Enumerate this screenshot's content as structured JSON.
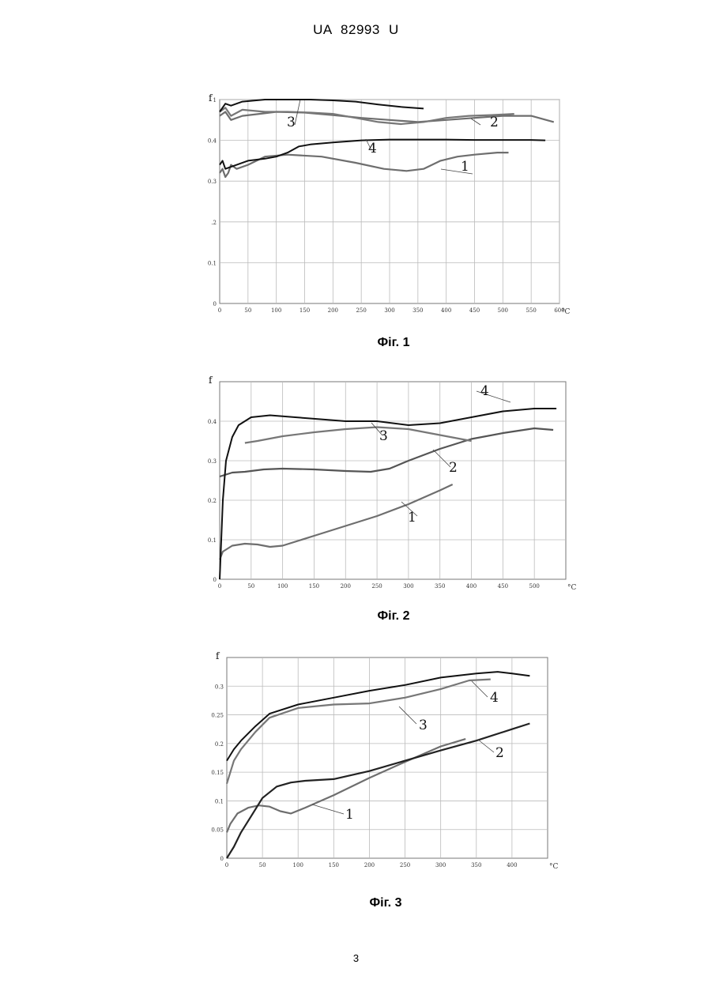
{
  "header": {
    "doc_id": "UA   82993   U"
  },
  "page_number": "3",
  "chart_data": [
    {
      "type": "line",
      "caption": "Фіг. 1",
      "ylabel": "f",
      "xunit": "°C",
      "xlim": [
        0,
        600
      ],
      "ylim": [
        0,
        0.5
      ],
      "xticks": [
        0,
        50,
        100,
        150,
        200,
        250,
        300,
        350,
        400,
        450,
        500,
        550,
        600
      ],
      "xtick_labels": [
        "0",
        "50",
        "100",
        "150",
        "200",
        "250",
        "300",
        "350",
        "400",
        "450",
        "500",
        "550",
        "600"
      ],
      "yticks": [
        0,
        0.1,
        0.2,
        0.3,
        0.4,
        0.5
      ],
      "ytick_labels": [
        "0",
        "0.1",
        ".2",
        "0.3",
        "0.4",
        "1"
      ],
      "grid": true,
      "series": [
        {
          "name": "1",
          "color": "#6e6e6e",
          "x": [
            0,
            5,
            10,
            15,
            20,
            30,
            50,
            80,
            120,
            180,
            240,
            290,
            330,
            360,
            390,
            420,
            450,
            490,
            510
          ],
          "y": [
            0.32,
            0.33,
            0.31,
            0.32,
            0.34,
            0.33,
            0.34,
            0.36,
            0.365,
            0.36,
            0.345,
            0.33,
            0.325,
            0.33,
            0.35,
            0.36,
            0.365,
            0.37,
            0.37
          ]
        },
        {
          "name": "2",
          "color": "#6e6e6e",
          "x": [
            0,
            10,
            20,
            40,
            70,
            100,
            150,
            200,
            250,
            300,
            350,
            400,
            450,
            500,
            550,
            590
          ],
          "y": [
            0.46,
            0.47,
            0.45,
            0.46,
            0.465,
            0.47,
            0.468,
            0.462,
            0.455,
            0.45,
            0.445,
            0.45,
            0.455,
            0.46,
            0.46,
            0.445
          ]
        },
        {
          "name": "3",
          "color": "#777777",
          "x": [
            0,
            10,
            20,
            40,
            80,
            120,
            160,
            200,
            240,
            280,
            320,
            360,
            400,
            440,
            480,
            520
          ],
          "y": [
            0.47,
            0.48,
            0.46,
            0.475,
            0.47,
            0.47,
            0.468,
            0.465,
            0.455,
            0.445,
            0.44,
            0.445,
            0.455,
            0.46,
            0.462,
            0.465
          ]
        },
        {
          "name": "4",
          "color": "#111111",
          "x": [
            0,
            5,
            10,
            20,
            30,
            50,
            80,
            100,
            120,
            140,
            160,
            200,
            250,
            300,
            350,
            400,
            450,
            500,
            550,
            575
          ],
          "y": [
            0.34,
            0.35,
            0.33,
            0.335,
            0.34,
            0.35,
            0.355,
            0.36,
            0.37,
            0.385,
            0.39,
            0.395,
            0.4,
            0.402,
            0.402,
            0.402,
            0.401,
            0.401,
            0.401,
            0.4
          ]
        },
        {
          "name": "",
          "color": "#111111",
          "x": [
            0,
            5,
            10,
            20,
            40,
            80,
            120,
            160,
            200,
            240,
            280,
            320,
            360
          ],
          "y": [
            0.47,
            0.48,
            0.49,
            0.485,
            0.495,
            0.5,
            0.5,
            0.5,
            0.498,
            0.495,
            0.488,
            0.482,
            0.478
          ]
        }
      ]
    },
    {
      "type": "line",
      "caption": "Фіг. 2",
      "ylabel": "f",
      "xunit": "°C",
      "xlim": [
        0,
        550
      ],
      "ylim": [
        0,
        0.5
      ],
      "xticks": [
        0,
        50,
        100,
        150,
        200,
        250,
        300,
        350,
        400,
        450,
        500
      ],
      "xtick_labels": [
        "0",
        "50",
        "100",
        "150",
        "200",
        "250",
        "300",
        "350",
        "400",
        "450",
        "500"
      ],
      "yticks": [
        0,
        0.1,
        0.2,
        0.3,
        0.4
      ],
      "ytick_labels": [
        "0",
        "0.1",
        "0.2",
        "0.3",
        "0.4"
      ],
      "grid": true,
      "series": [
        {
          "name": "1",
          "color": "#6e6e6e",
          "x": [
            0,
            5,
            20,
            40,
            60,
            80,
            100,
            150,
            200,
            250,
            300,
            350,
            370
          ],
          "y": [
            0.05,
            0.07,
            0.085,
            0.09,
            0.088,
            0.082,
            0.085,
            0.11,
            0.135,
            0.16,
            0.19,
            0.225,
            0.24
          ]
        },
        {
          "name": "2",
          "color": "#555555",
          "x": [
            0,
            10,
            20,
            40,
            70,
            100,
            150,
            200,
            240,
            270,
            300,
            350,
            400,
            450,
            500,
            530
          ],
          "y": [
            0.26,
            0.265,
            0.27,
            0.272,
            0.278,
            0.28,
            0.278,
            0.274,
            0.272,
            0.28,
            0.3,
            0.33,
            0.355,
            0.37,
            0.382,
            0.378
          ]
        },
        {
          "name": "3",
          "color": "#777777",
          "x": [
            40,
            60,
            100,
            150,
            200,
            250,
            300,
            350,
            400
          ],
          "y": [
            0.345,
            0.35,
            0.362,
            0.372,
            0.38,
            0.385,
            0.38,
            0.365,
            0.35
          ]
        },
        {
          "name": "4",
          "color": "#111111",
          "x": [
            0,
            5,
            10,
            20,
            30,
            50,
            80,
            120,
            160,
            200,
            250,
            300,
            350,
            400,
            450,
            500,
            535
          ],
          "y": [
            0.0,
            0.2,
            0.3,
            0.36,
            0.39,
            0.41,
            0.415,
            0.41,
            0.405,
            0.4,
            0.4,
            0.39,
            0.395,
            0.41,
            0.425,
            0.432,
            0.432
          ]
        }
      ]
    },
    {
      "type": "line",
      "caption": "Фіг. 3",
      "ylabel": "f",
      "xunit": "°C",
      "xlim": [
        0,
        450
      ],
      "ylim": [
        0,
        0.35
      ],
      "xticks": [
        0,
        50,
        100,
        150,
        200,
        250,
        300,
        350,
        400
      ],
      "xtick_labels": [
        "0",
        "50",
        "100",
        "150",
        "200",
        "250",
        "300",
        "350",
        "400"
      ],
      "yticks": [
        0,
        0.05,
        0.1,
        0.15,
        0.2,
        0.25,
        0.3
      ],
      "ytick_labels": [
        "0",
        "0.05",
        "0.1",
        "0.15",
        "0.2",
        "0.25",
        "0.3"
      ],
      "grid": true,
      "series": [
        {
          "name": "1",
          "color": "#6e6e6e",
          "x": [
            0,
            5,
            15,
            30,
            45,
            60,
            75,
            90,
            110,
            150,
            200,
            250,
            300,
            335
          ],
          "y": [
            0.045,
            0.06,
            0.078,
            0.088,
            0.092,
            0.09,
            0.082,
            0.078,
            0.088,
            0.11,
            0.14,
            0.168,
            0.195,
            0.208
          ]
        },
        {
          "name": "2",
          "color": "#222222",
          "x": [
            0,
            10,
            20,
            35,
            50,
            70,
            90,
            110,
            150,
            200,
            250,
            300,
            350,
            400,
            425
          ],
          "y": [
            0.0,
            0.02,
            0.045,
            0.075,
            0.105,
            0.125,
            0.132,
            0.135,
            0.138,
            0.152,
            0.17,
            0.188,
            0.205,
            0.225,
            0.235
          ]
        },
        {
          "name": "3",
          "color": "#777777",
          "x": [
            0,
            5,
            10,
            20,
            40,
            60,
            100,
            150,
            200,
            250,
            300,
            340,
            370
          ],
          "y": [
            0.13,
            0.15,
            0.17,
            0.19,
            0.22,
            0.245,
            0.262,
            0.268,
            0.27,
            0.28,
            0.295,
            0.31,
            0.312
          ]
        },
        {
          "name": "4",
          "color": "#111111",
          "x": [
            0,
            5,
            10,
            20,
            40,
            60,
            100,
            150,
            200,
            250,
            300,
            350,
            380,
            400,
            425
          ],
          "y": [
            0.17,
            0.18,
            0.19,
            0.205,
            0.23,
            0.252,
            0.268,
            0.28,
            0.292,
            0.302,
            0.315,
            0.322,
            0.325,
            0.322,
            0.318
          ]
        }
      ]
    }
  ]
}
